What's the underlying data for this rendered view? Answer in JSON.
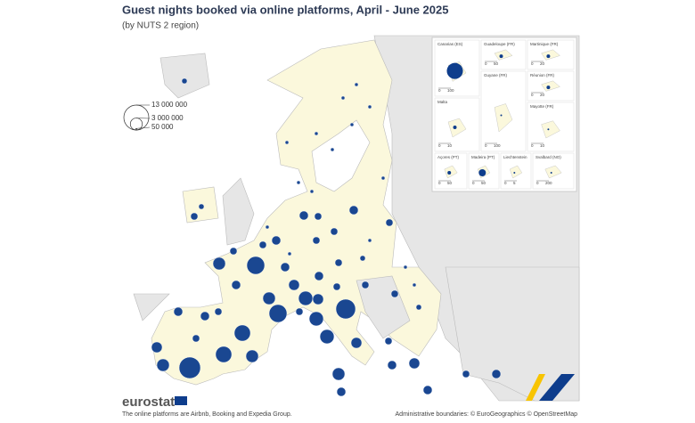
{
  "header": {
    "title": "Guest nights booked via online platforms, April - June 2025",
    "subtitle": "(by NUTS 2 region)"
  },
  "legend": {
    "values": [
      {
        "value": 13000000,
        "label": "13 000 000"
      },
      {
        "value": 3000000,
        "label": "3 000 000"
      },
      {
        "value": 50000,
        "label": "50 000"
      }
    ]
  },
  "bubbles": {
    "color": "#0e3d8c",
    "values": [
      9500000,
      6600000,
      8000000,
      6600000,
      5400000,
      5400000,
      4200000,
      4200000,
      3250000,
      4200000,
      3250000,
      3250000,
      3250000,
      1650000,
      2400000,
      2400000,
      2400000,
      3250000,
      2400000,
      1650000,
      2400000,
      1650000,
      1650000,
      1060000,
      1650000,
      1060000,
      600000,
      1060000,
      600000,
      1650000,
      1060000,
      1650000,
      1060000,
      1650000,
      1060000,
      1650000,
      1650000,
      1060000,
      1060000,
      1060000,
      1650000,
      1650000,
      1060000,
      1060000,
      1060000,
      1060000,
      1060000,
      1060000,
      600000,
      600000,
      1060000,
      265000,
      265000,
      265000,
      265000,
      265000,
      265000,
      265000,
      265000,
      265000,
      265000,
      265000,
      265000,
      265000,
      265000,
      265000
    ]
  },
  "insets": [
    {
      "label": "Canarias (ES)",
      "scale": [
        0,
        100
      ],
      "value": 5400000
    },
    {
      "label": "Guadeloupe (FR)",
      "scale": [
        0,
        50
      ],
      "value": 265000
    },
    {
      "label": "Martinique (FR)",
      "scale": [
        0,
        20
      ],
      "value": 265000
    },
    {
      "label": "Réunion (FR)",
      "scale": [
        0,
        20
      ],
      "value": 265000
    },
    {
      "label": "Malta",
      "scale": [
        0,
        10
      ],
      "value": 265000
    },
    {
      "label": "Guyane (FR)",
      "scale": [
        0,
        100
      ],
      "value": 66000
    },
    {
      "label": "Mayotte (FR)",
      "scale": [
        0,
        10
      ],
      "value": 66000
    },
    {
      "label": "Açores (PT)",
      "scale": [
        0,
        50
      ],
      "value": 265000
    },
    {
      "label": "Madeira (PT)",
      "scale": [
        0,
        50
      ],
      "value": 1060000
    },
    {
      "label": "Liechtenstein",
      "scale": [
        0,
        5
      ],
      "value": 66000
    },
    {
      "label": "Svalbard (NO)",
      "scale": [
        0,
        200
      ],
      "value": 66000
    }
  ],
  "footer": {
    "logo": "eurostat",
    "note": "The online platforms are Airbnb, Booking and Expedia Group.",
    "credit": "Administrative boundaries: © EuroGeographics © OpenStreetMap"
  }
}
